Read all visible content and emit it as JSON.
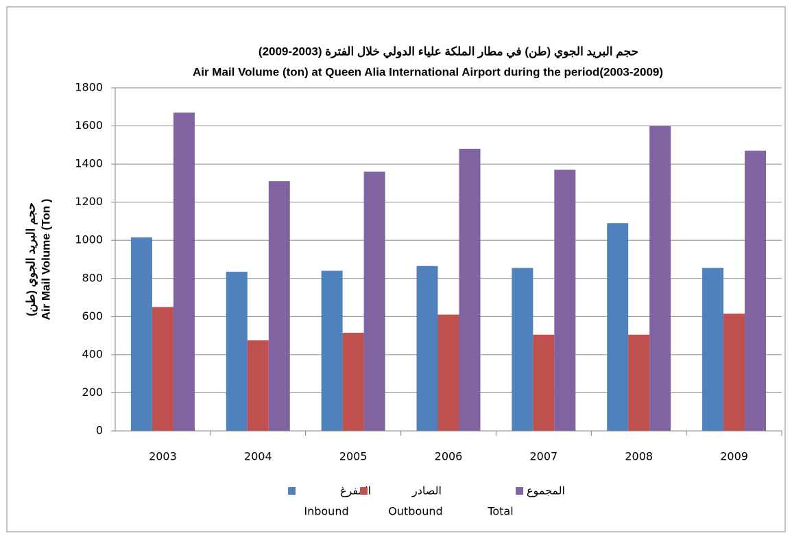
{
  "chart_data": {
    "type": "bar",
    "title_ar": "حجم البريد الجوي (طن) في مطار الملكة علياء الدولي خلال الفترة (2003-2009)",
    "title": "Air Mail Volume  (ton) at Queen Alia International Airport during the period(2003-2009)",
    "y_label_ar": "حجم البريد الجوي (طن)",
    "y_label": "Air Mail Volume (Ton )",
    "categories": [
      "2003",
      "2004",
      "2005",
      "2006",
      "2007",
      "2008",
      "2009"
    ],
    "series": [
      {
        "name": "Inbound",
        "name_ar": "المفرغ",
        "color": "#4f81bd",
        "values": [
          1015,
          835,
          840,
          865,
          855,
          1090,
          855
        ]
      },
      {
        "name": "Outbound",
        "name_ar": "الصادر",
        "color": "#c0504d",
        "values": [
          650,
          475,
          515,
          610,
          505,
          505,
          615
        ]
      },
      {
        "name": "Total",
        "name_ar": "المجموع",
        "color": "#8064a2",
        "values": [
          1670,
          1310,
          1360,
          1480,
          1370,
          1600,
          1470
        ]
      }
    ],
    "ylim": [
      0,
      1800
    ],
    "yticks": [
      0,
      200,
      400,
      600,
      800,
      1000,
      1200,
      1400,
      1600,
      1800
    ],
    "grid": true
  }
}
